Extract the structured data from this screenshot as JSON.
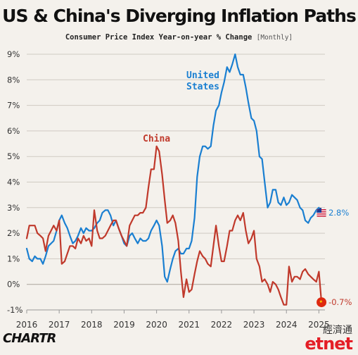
{
  "header": {
    "title": "US & China's Diverging Inflation Paths",
    "subtitle": "Consumer Price Index Year-on-year % Change",
    "frequency": "[Monthly]"
  },
  "footer": {
    "brand": "CHARTR",
    "watermark_cn": "經濟通",
    "watermark_en": "etnet"
  },
  "chart_data": {
    "type": "line",
    "title": "US & China's Diverging Inflation Paths",
    "subtitle": "Consumer Price Index Year-on-year % Change [Monthly]",
    "xlabel": "",
    "ylabel": "",
    "x_range": [
      2016.0,
      2025.1
    ],
    "ylim": [
      -1,
      9
    ],
    "y_ticks": [
      "-1%",
      "0%",
      "1%",
      "2%",
      "3%",
      "4%",
      "5%",
      "6%",
      "7%",
      "8%",
      "9%"
    ],
    "y_tick_values": [
      -1,
      0,
      1,
      2,
      3,
      4,
      5,
      6,
      7,
      8,
      9
    ],
    "x_ticks": [
      "2016",
      "2017",
      "2018",
      "2019",
      "2020",
      "2021",
      "2022",
      "2023",
      "2024",
      "2025"
    ],
    "x_tick_values": [
      2016,
      2017,
      2018,
      2019,
      2020,
      2021,
      2022,
      2023,
      2024,
      2025
    ],
    "grid": "horizontal",
    "colors": {
      "us": "#1a7fd1",
      "china": "#c0392b",
      "grid": "#cfcac2",
      "axis": "#999999"
    },
    "series": [
      {
        "name": "United States",
        "label_lines": [
          "United",
          "States"
        ],
        "color": "#1a7fd1",
        "end_label": "2.8%",
        "values": [
          [
            2016.0,
            1.4
          ],
          [
            2016.08,
            1.0
          ],
          [
            2016.17,
            0.9
          ],
          [
            2016.25,
            1.1
          ],
          [
            2016.33,
            1.0
          ],
          [
            2016.42,
            1.0
          ],
          [
            2016.5,
            0.8
          ],
          [
            2016.58,
            1.1
          ],
          [
            2016.67,
            1.5
          ],
          [
            2016.75,
            1.6
          ],
          [
            2016.83,
            1.7
          ],
          [
            2016.92,
            2.1
          ],
          [
            2017.0,
            2.5
          ],
          [
            2017.08,
            2.7
          ],
          [
            2017.17,
            2.4
          ],
          [
            2017.25,
            2.2
          ],
          [
            2017.33,
            1.9
          ],
          [
            2017.42,
            1.6
          ],
          [
            2017.5,
            1.7
          ],
          [
            2017.58,
            1.9
          ],
          [
            2017.67,
            2.2
          ],
          [
            2017.75,
            2.0
          ],
          [
            2017.83,
            2.2
          ],
          [
            2017.92,
            2.1
          ],
          [
            2018.0,
            2.1
          ],
          [
            2018.08,
            2.2
          ],
          [
            2018.17,
            2.4
          ],
          [
            2018.25,
            2.5
          ],
          [
            2018.33,
            2.8
          ],
          [
            2018.42,
            2.9
          ],
          [
            2018.5,
            2.9
          ],
          [
            2018.58,
            2.7
          ],
          [
            2018.67,
            2.3
          ],
          [
            2018.75,
            2.5
          ],
          [
            2018.83,
            2.2
          ],
          [
            2018.92,
            1.9
          ],
          [
            2019.0,
            1.6
          ],
          [
            2019.08,
            1.5
          ],
          [
            2019.17,
            1.9
          ],
          [
            2019.25,
            2.0
          ],
          [
            2019.33,
            1.8
          ],
          [
            2019.42,
            1.6
          ],
          [
            2019.5,
            1.8
          ],
          [
            2019.58,
            1.7
          ],
          [
            2019.67,
            1.7
          ],
          [
            2019.75,
            1.8
          ],
          [
            2019.83,
            2.1
          ],
          [
            2019.92,
            2.3
          ],
          [
            2020.0,
            2.5
          ],
          [
            2020.08,
            2.3
          ],
          [
            2020.17,
            1.5
          ],
          [
            2020.25,
            0.3
          ],
          [
            2020.33,
            0.1
          ],
          [
            2020.42,
            0.6
          ],
          [
            2020.5,
            1.0
          ],
          [
            2020.58,
            1.3
          ],
          [
            2020.67,
            1.4
          ],
          [
            2020.75,
            1.2
          ],
          [
            2020.83,
            1.2
          ],
          [
            2020.92,
            1.4
          ],
          [
            2021.0,
            1.4
          ],
          [
            2021.08,
            1.7
          ],
          [
            2021.17,
            2.6
          ],
          [
            2021.25,
            4.2
          ],
          [
            2021.33,
            5.0
          ],
          [
            2021.42,
            5.4
          ],
          [
            2021.5,
            5.4
          ],
          [
            2021.58,
            5.3
          ],
          [
            2021.67,
            5.4
          ],
          [
            2021.75,
            6.2
          ],
          [
            2021.83,
            6.8
          ],
          [
            2021.92,
            7.0
          ],
          [
            2022.0,
            7.5
          ],
          [
            2022.08,
            7.9
          ],
          [
            2022.17,
            8.5
          ],
          [
            2022.25,
            8.3
          ],
          [
            2022.33,
            8.6
          ],
          [
            2022.42,
            9.0
          ],
          [
            2022.5,
            8.5
          ],
          [
            2022.58,
            8.2
          ],
          [
            2022.67,
            8.2
          ],
          [
            2022.75,
            7.7
          ],
          [
            2022.83,
            7.1
          ],
          [
            2022.92,
            6.5
          ],
          [
            2023.0,
            6.4
          ],
          [
            2023.08,
            6.0
          ],
          [
            2023.17,
            5.0
          ],
          [
            2023.25,
            4.9
          ],
          [
            2023.33,
            4.0
          ],
          [
            2023.42,
            3.0
          ],
          [
            2023.5,
            3.2
          ],
          [
            2023.58,
            3.7
          ],
          [
            2023.67,
            3.7
          ],
          [
            2023.75,
            3.2
          ],
          [
            2023.83,
            3.1
          ],
          [
            2023.92,
            3.4
          ],
          [
            2024.0,
            3.1
          ],
          [
            2024.08,
            3.2
          ],
          [
            2024.17,
            3.5
          ],
          [
            2024.25,
            3.4
          ],
          [
            2024.33,
            3.3
          ],
          [
            2024.42,
            3.0
          ],
          [
            2024.5,
            2.9
          ],
          [
            2024.58,
            2.5
          ],
          [
            2024.67,
            2.4
          ],
          [
            2024.75,
            2.6
          ],
          [
            2024.83,
            2.7
          ],
          [
            2024.92,
            2.9
          ],
          [
            2025.0,
            3.0
          ],
          [
            2025.08,
            2.8
          ]
        ]
      },
      {
        "name": "China",
        "label_lines": [
          "China"
        ],
        "color": "#c0392b",
        "end_label": "-0.7%",
        "values": [
          [
            2016.0,
            1.8
          ],
          [
            2016.08,
            2.3
          ],
          [
            2016.17,
            2.3
          ],
          [
            2016.25,
            2.3
          ],
          [
            2016.33,
            2.0
          ],
          [
            2016.42,
            1.9
          ],
          [
            2016.5,
            1.8
          ],
          [
            2016.58,
            1.3
          ],
          [
            2016.67,
            1.9
          ],
          [
            2016.75,
            2.1
          ],
          [
            2016.83,
            2.3
          ],
          [
            2016.92,
            2.1
          ],
          [
            2017.0,
            2.5
          ],
          [
            2017.08,
            0.8
          ],
          [
            2017.17,
            0.9
          ],
          [
            2017.25,
            1.2
          ],
          [
            2017.33,
            1.5
          ],
          [
            2017.42,
            1.5
          ],
          [
            2017.5,
            1.4
          ],
          [
            2017.58,
            1.8
          ],
          [
            2017.67,
            1.6
          ],
          [
            2017.75,
            1.9
          ],
          [
            2017.83,
            1.7
          ],
          [
            2017.92,
            1.8
          ],
          [
            2018.0,
            1.5
          ],
          [
            2018.08,
            2.9
          ],
          [
            2018.17,
            2.1
          ],
          [
            2018.25,
            1.8
          ],
          [
            2018.33,
            1.8
          ],
          [
            2018.42,
            1.9
          ],
          [
            2018.5,
            2.1
          ],
          [
            2018.58,
            2.3
          ],
          [
            2018.67,
            2.5
          ],
          [
            2018.75,
            2.5
          ],
          [
            2018.83,
            2.2
          ],
          [
            2018.92,
            1.9
          ],
          [
            2019.0,
            1.7
          ],
          [
            2019.08,
            1.5
          ],
          [
            2019.17,
            2.3
          ],
          [
            2019.25,
            2.5
          ],
          [
            2019.33,
            2.7
          ],
          [
            2019.42,
            2.7
          ],
          [
            2019.5,
            2.8
          ],
          [
            2019.58,
            2.8
          ],
          [
            2019.67,
            3.0
          ],
          [
            2019.75,
            3.8
          ],
          [
            2019.83,
            4.5
          ],
          [
            2019.92,
            4.5
          ],
          [
            2020.0,
            5.4
          ],
          [
            2020.08,
            5.2
          ],
          [
            2020.17,
            4.3
          ],
          [
            2020.25,
            3.3
          ],
          [
            2020.33,
            2.4
          ],
          [
            2020.42,
            2.5
          ],
          [
            2020.5,
            2.7
          ],
          [
            2020.58,
            2.4
          ],
          [
            2020.67,
            1.7
          ],
          [
            2020.75,
            0.5
          ],
          [
            2020.83,
            -0.5
          ],
          [
            2020.92,
            0.2
          ],
          [
            2021.0,
            -0.3
          ],
          [
            2021.08,
            -0.2
          ],
          [
            2021.17,
            0.4
          ],
          [
            2021.25,
            0.9
          ],
          [
            2021.33,
            1.3
          ],
          [
            2021.42,
            1.1
          ],
          [
            2021.5,
            1.0
          ],
          [
            2021.58,
            0.8
          ],
          [
            2021.67,
            0.7
          ],
          [
            2021.75,
            1.5
          ],
          [
            2021.83,
            2.3
          ],
          [
            2021.92,
            1.5
          ],
          [
            2022.0,
            0.9
          ],
          [
            2022.08,
            0.9
          ],
          [
            2022.17,
            1.5
          ],
          [
            2022.25,
            2.1
          ],
          [
            2022.33,
            2.1
          ],
          [
            2022.42,
            2.5
          ],
          [
            2022.5,
            2.7
          ],
          [
            2022.58,
            2.5
          ],
          [
            2022.67,
            2.8
          ],
          [
            2022.75,
            2.1
          ],
          [
            2022.83,
            1.6
          ],
          [
            2022.92,
            1.8
          ],
          [
            2023.0,
            2.1
          ],
          [
            2023.08,
            1.0
          ],
          [
            2023.17,
            0.7
          ],
          [
            2023.25,
            0.1
          ],
          [
            2023.33,
            0.2
          ],
          [
            2023.42,
            0.0
          ],
          [
            2023.5,
            -0.3
          ],
          [
            2023.58,
            0.1
          ],
          [
            2023.67,
            0.0
          ],
          [
            2023.75,
            -0.2
          ],
          [
            2023.83,
            -0.5
          ],
          [
            2023.92,
            -0.8
          ],
          [
            2024.0,
            -0.8
          ],
          [
            2024.08,
            0.7
          ],
          [
            2024.17,
            0.1
          ],
          [
            2024.25,
            0.3
          ],
          [
            2024.33,
            0.3
          ],
          [
            2024.42,
            0.2
          ],
          [
            2024.5,
            0.5
          ],
          [
            2024.58,
            0.6
          ],
          [
            2024.67,
            0.4
          ],
          [
            2024.75,
            0.3
          ],
          [
            2024.83,
            0.2
          ],
          [
            2024.92,
            0.1
          ],
          [
            2025.0,
            0.5
          ],
          [
            2025.08,
            -0.7
          ]
        ]
      }
    ]
  }
}
